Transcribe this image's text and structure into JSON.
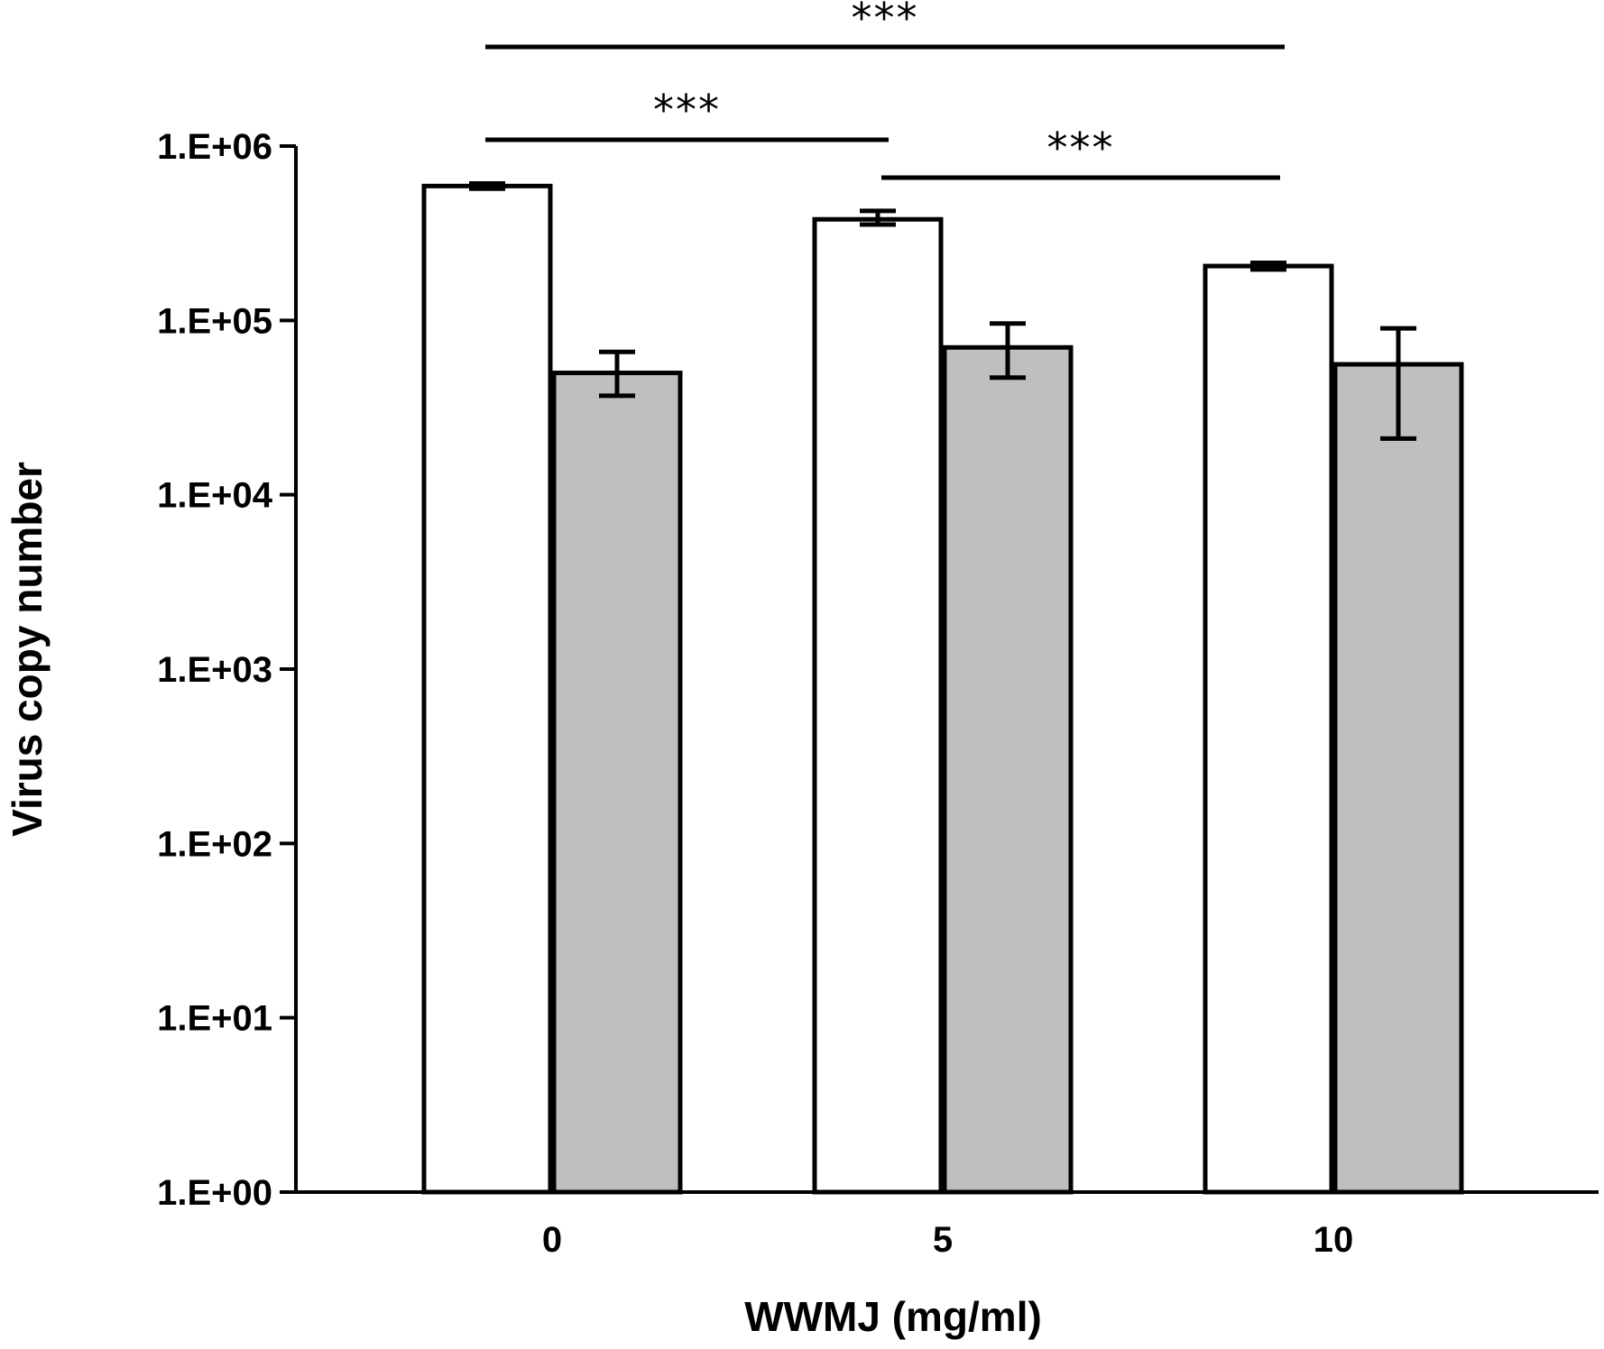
{
  "chart_data": {
    "type": "bar",
    "scale": "log10",
    "xlabel": "WWMJ (mg/ml)",
    "ylabel": "Virus copy number",
    "categories": [
      "0",
      "5",
      "10"
    ],
    "yticks": [
      "1.E+00",
      "1.E+01",
      "1.E+02",
      "1.E+03",
      "1.E+04",
      "1.E+05",
      "1.E+06"
    ],
    "ylim": [
      1,
      1000000
    ],
    "grid": false,
    "series": [
      {
        "fill": "#ffffff",
        "values": [
          590000,
          380000,
          205000
        ],
        "err_low": [
          570000,
          355000,
          196000
        ],
        "err_high": [
          610000,
          425000,
          214000
        ]
      },
      {
        "fill": "#bfbfbf",
        "values": [
          50000,
          70000,
          56000
        ],
        "err_low": [
          37000,
          47000,
          21000
        ],
        "err_high": [
          66000,
          96000,
          90000
        ]
      }
    ],
    "significance": [
      {
        "from_category": "0",
        "to_category": "10",
        "label": "***"
      },
      {
        "from_category": "0",
        "to_category": "5",
        "label": "***"
      },
      {
        "from_category": "5",
        "to_category": "10",
        "label": "***"
      }
    ]
  },
  "colors": {
    "axis": "#000000",
    "bar_outline": "#000000",
    "series1_fill": "#ffffff",
    "series2_fill": "#bfbfbf"
  }
}
